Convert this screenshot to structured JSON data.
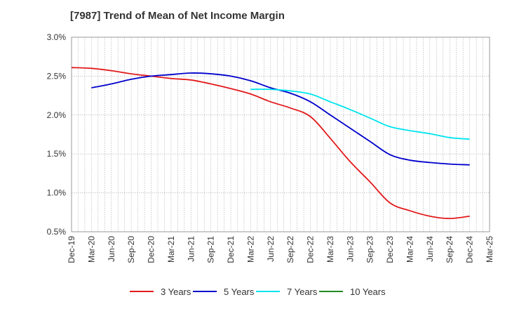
{
  "chart_data": {
    "type": "line",
    "title": "[7987]  Trend of Mean of Net Income Margin",
    "xlabel": "",
    "ylabel": "",
    "x": [
      "Dec-19",
      "Mar-20",
      "Jun-20",
      "Sep-20",
      "Dec-20",
      "Mar-21",
      "Jun-21",
      "Sep-21",
      "Dec-21",
      "Mar-22",
      "Jun-22",
      "Sep-22",
      "Dec-22",
      "Mar-23",
      "Jun-23",
      "Sep-23",
      "Dec-23",
      "Mar-24",
      "Jun-24",
      "Sep-24",
      "Dec-24",
      "Mar-25"
    ],
    "ylim": [
      0.5,
      3.0
    ],
    "yticks": [
      "0.5%",
      "1.0%",
      "1.5%",
      "2.0%",
      "2.5%",
      "3.0%"
    ],
    "ytick_values": [
      0.5,
      1.0,
      1.5,
      2.0,
      2.5,
      3.0
    ],
    "grid": "dotted",
    "legend_position": "bottom",
    "series": [
      {
        "name": "3 Years",
        "color": "#e31a1c",
        "values": [
          2.61,
          2.6,
          2.57,
          2.53,
          2.5,
          2.47,
          2.45,
          2.4,
          2.34,
          2.27,
          2.17,
          2.09,
          1.98,
          1.7,
          1.4,
          1.14,
          0.87,
          0.77,
          0.7,
          0.67,
          0.7,
          null
        ]
      },
      {
        "name": "5 Years",
        "color": "#0000cc",
        "values": [
          null,
          2.35,
          2.4,
          2.46,
          2.5,
          2.52,
          2.54,
          2.53,
          2.5,
          2.44,
          2.35,
          2.28,
          2.17,
          2.0,
          1.83,
          1.66,
          1.49,
          1.42,
          1.39,
          1.37,
          1.36,
          null
        ]
      },
      {
        "name": "7 Years",
        "color": "#00e5ee",
        "values": [
          null,
          null,
          null,
          null,
          null,
          null,
          null,
          null,
          null,
          2.33,
          2.33,
          2.31,
          2.27,
          2.17,
          2.07,
          1.96,
          1.85,
          1.8,
          1.76,
          1.71,
          1.69,
          null
        ]
      },
      {
        "name": "10 Years",
        "color": "#228b22",
        "values": [
          null,
          null,
          null,
          null,
          null,
          null,
          null,
          null,
          null,
          null,
          null,
          null,
          null,
          null,
          null,
          null,
          null,
          null,
          null,
          null,
          null,
          null
        ]
      }
    ]
  }
}
